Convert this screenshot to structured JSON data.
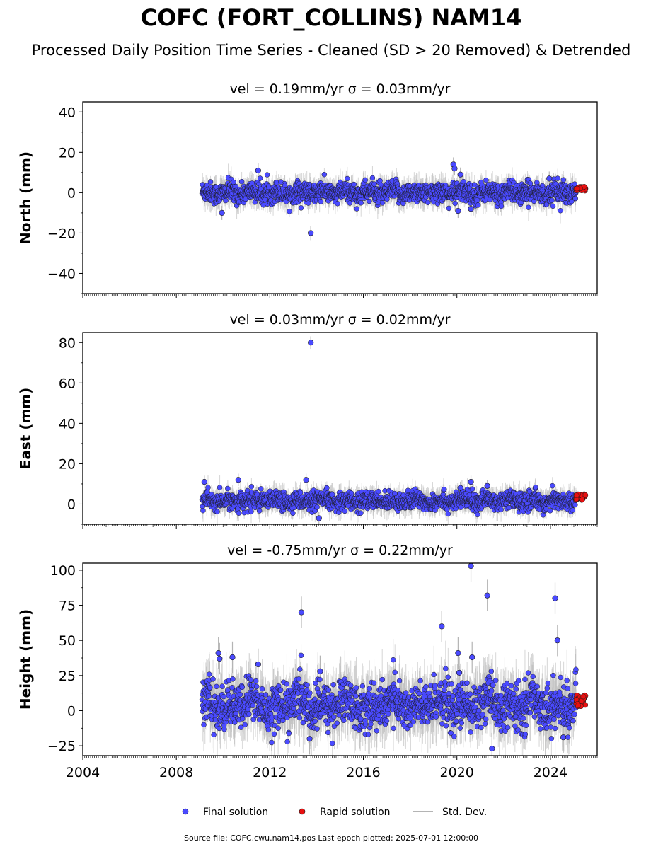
{
  "title": "COFC (FORT_COLLINS) NAM14",
  "subtitle": "Processed Daily Position Time Series - Cleaned (SD > 20 Removed) & Detrended",
  "footer": "Source file: COFC.cwu.nam14.pos  Last epoch plotted: 2025-07-01 12:00:00",
  "legend": {
    "final": "Final solution",
    "rapid": "Rapid solution",
    "std": "Std. Dev."
  },
  "colors": {
    "final": "#4a4aff",
    "rapid": "#e81010",
    "std": "#b4b4b4",
    "marker_edge": "#1a1a1a"
  },
  "chart_data": [
    {
      "type": "scatter",
      "panel": "north",
      "title": "vel = 0.19mm/yr   σ = 0.03mm/yr",
      "ylabel": "North (mm)",
      "xlim": [
        2004.0,
        2026.0
      ],
      "ylim": [
        -50,
        45
      ],
      "yticks": [
        -40,
        -20,
        0,
        20,
        40
      ],
      "final_solution": {
        "x_range": [
          2009.1,
          2025.1
        ],
        "typical_spread_mm": 2.5,
        "outliers": [
          [
            2009.95,
            -10
          ],
          [
            2011.5,
            11
          ],
          [
            2013.75,
            -20
          ],
          [
            2019.85,
            14
          ],
          [
            2019.9,
            12
          ],
          [
            2020.15,
            9
          ],
          [
            2020.05,
            -9
          ],
          [
            2020.6,
            -8
          ],
          [
            2023.95,
            7
          ]
        ]
      },
      "rapid_solution": {
        "x_range": [
          2025.1,
          2025.5
        ],
        "y_range": [
          1,
          3
        ]
      }
    },
    {
      "type": "scatter",
      "panel": "east",
      "title": "vel = 0.03mm/yr   σ = 0.02mm/yr",
      "ylabel": "East (mm)",
      "xlim": [
        2004.0,
        2026.0
      ],
      "ylim": [
        -10,
        85
      ],
      "yticks": [
        0,
        20,
        40,
        60,
        80
      ],
      "final_solution": {
        "x_range": [
          2009.1,
          2025.1
        ],
        "typical_spread_mm": 2.2,
        "outliers": [
          [
            2009.2,
            11
          ],
          [
            2010.65,
            12
          ],
          [
            2013.55,
            12
          ],
          [
            2013.75,
            80
          ],
          [
            2014.1,
            -7
          ],
          [
            2020.6,
            11
          ],
          [
            2020.15,
            8
          ],
          [
            2021.3,
            9
          ]
        ]
      },
      "rapid_solution": {
        "x_range": [
          2025.1,
          2025.5
        ],
        "y_range": [
          2,
          5
        ]
      }
    },
    {
      "type": "scatter",
      "panel": "height",
      "title": "vel = -0.75mm/yr   σ = 0.22mm/yr",
      "ylabel": "Height (mm)",
      "xlim": [
        2004.0,
        2026.0
      ],
      "ylim": [
        -32,
        105
      ],
      "yticks": [
        -25,
        0,
        25,
        50,
        75,
        100
      ],
      "xticks": [
        "2004",
        "2008",
        "2012",
        "2016",
        "2020",
        "2024"
      ],
      "final_solution": {
        "x_range": [
          2009.1,
          2025.1
        ],
        "typical_spread_mm": 8,
        "outliers": [
          [
            2009.8,
            41
          ],
          [
            2009.85,
            37
          ],
          [
            2010.4,
            38
          ],
          [
            2011.5,
            33
          ],
          [
            2013.35,
            70
          ],
          [
            2014.15,
            28
          ],
          [
            2019.35,
            60
          ],
          [
            2020.05,
            41
          ],
          [
            2020.1,
            27
          ],
          [
            2020.6,
            103
          ],
          [
            2020.65,
            38
          ],
          [
            2021.3,
            82
          ],
          [
            2021.5,
            -27
          ],
          [
            2024.2,
            80
          ],
          [
            2024.3,
            50
          ],
          [
            2024.55,
            -19
          ],
          [
            2013.7,
            -20
          ]
        ]
      },
      "rapid_solution": {
        "x_range": [
          2025.1,
          2025.5
        ],
        "y_range": [
          3,
          11
        ]
      }
    }
  ]
}
